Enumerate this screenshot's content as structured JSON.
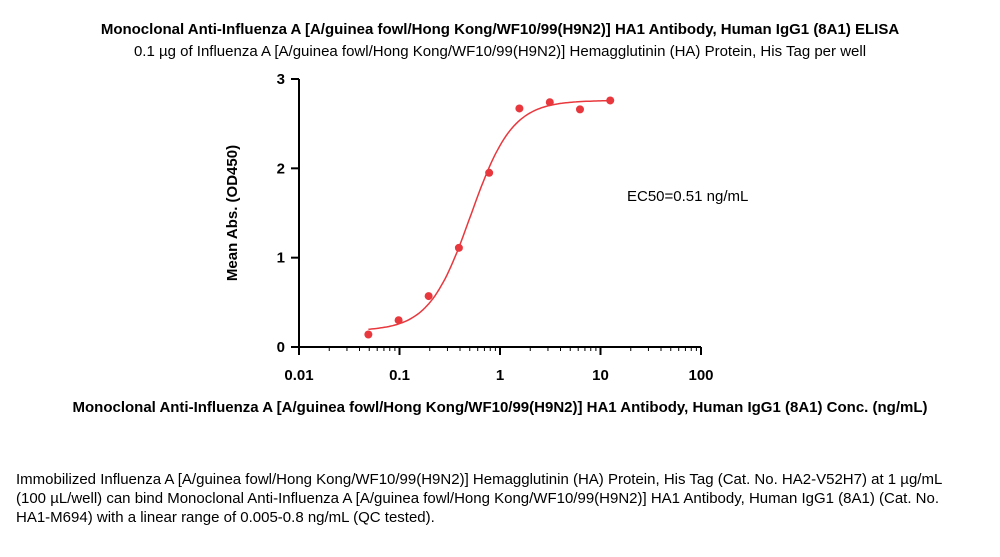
{
  "chart_data": {
    "type": "scatter",
    "title": "Monoclonal Anti-Influenza A [A/guinea fowl/Hong Kong/WF10/99(H9N2)] HA1 Antibody, Human IgG1 (8A1) ELISA",
    "subtitle": "0.1 µg of Influenza A [A/guinea fowl/Hong Kong/WF10/99(H9N2)] Hemagglutinin (HA) Protein, His Tag per well",
    "xlabel": "Monoclonal Anti-Influenza A [A/guinea fowl/Hong Kong/WF10/99(H9N2)] HA1 Antibody, Human IgG1 (8A1) Conc. (ng/mL)",
    "ylabel": "Mean Abs. (OD450)",
    "x_scale": "log",
    "xlim": [
      0.01,
      100
    ],
    "ylim": [
      0,
      3
    ],
    "x_ticks": [
      "0.01",
      "0.1",
      "1",
      "10",
      "100"
    ],
    "y_ticks": [
      "0",
      "1",
      "2",
      "3"
    ],
    "points": [
      {
        "x": 0.049,
        "y": 0.14
      },
      {
        "x": 0.098,
        "y": 0.3
      },
      {
        "x": 0.195,
        "y": 0.57
      },
      {
        "x": 0.39,
        "y": 1.11
      },
      {
        "x": 0.78,
        "y": 1.95
      },
      {
        "x": 1.56,
        "y": 2.67
      },
      {
        "x": 3.13,
        "y": 2.74
      },
      {
        "x": 6.25,
        "y": 2.66
      },
      {
        "x": 12.5,
        "y": 2.76
      }
    ],
    "fit": {
      "bottom": 0.18,
      "top": 2.76,
      "ec50": 0.51,
      "hill": 2.1
    },
    "annotation": "EC50=0.51 ng/mL",
    "color": "#e8383d",
    "grid": false,
    "legend": "none"
  },
  "caption": "Immobilized Influenza A [A/guinea fowl/Hong Kong/WF10/99(H9N2)] Hemagglutinin (HA) Protein, His Tag (Cat. No. HA2-V52H7) at 1 µg/mL (100 µL/well) can bind Monoclonal Anti-Influenza A [A/guinea fowl/Hong Kong/WF10/99(H9N2)] HA1 Antibody, Human IgG1 (8A1) (Cat. No. HA1-M694) with a linear range of 0.005-0.8 ng/mL (QC tested)."
}
